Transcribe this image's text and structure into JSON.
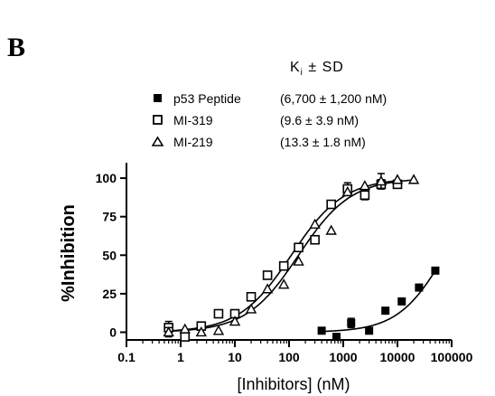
{
  "panel_label": "B",
  "legend": {
    "header_main": "K",
    "header_sub": "i",
    "header_suffix": " ± SD",
    "entries": [
      {
        "marker": "filled-square",
        "label": "p53 Peptide",
        "ki": "(6,700 ± 1,200 nM)"
      },
      {
        "marker": "open-square",
        "label": "MI-319",
        "ki": "(9.6  ± 3.9 nM)"
      },
      {
        "marker": "open-triangle",
        "label": "MI-219",
        "ki": "(13.3  ± 1.8 nM)"
      }
    ]
  },
  "chart_data": {
    "type": "scatter",
    "title": "",
    "xlabel": "[Inhibitors] (nM)",
    "ylabel": "%Inhibition",
    "x_scale": "log",
    "xlim": [
      0.1,
      100000
    ],
    "ylim": [
      -5,
      110
    ],
    "x_ticks": [
      0.1,
      1,
      10,
      100,
      1000,
      10000,
      100000
    ],
    "x_tick_labels": [
      "0.1",
      "1",
      "10",
      "100",
      "1000",
      "10000",
      "100000"
    ],
    "y_ticks": [
      0,
      25,
      50,
      75,
      100
    ],
    "y_tick_labels": [
      "0",
      "25",
      "50",
      "75",
      "100"
    ],
    "grid": false,
    "series": [
      {
        "name": "p53 Peptide",
        "marker": "filled-square",
        "points": [
          {
            "x": 400,
            "y": 1,
            "err": 0
          },
          {
            "x": 750,
            "y": -3,
            "err": 0
          },
          {
            "x": 1400,
            "y": 6,
            "err": 3
          },
          {
            "x": 3000,
            "y": 1,
            "err": 0
          },
          {
            "x": 6000,
            "y": 14,
            "err": 0
          },
          {
            "x": 12000,
            "y": 20,
            "err": 0
          },
          {
            "x": 25000,
            "y": 29,
            "err": 2
          },
          {
            "x": 50000,
            "y": 40,
            "err": 0
          }
        ],
        "fit": {
          "bottom": 0,
          "top": 100,
          "ec50": 75000,
          "hill": 1
        }
      },
      {
        "name": "MI-319",
        "marker": "open-square",
        "points": [
          {
            "x": 0.6,
            "y": 3,
            "err": 4
          },
          {
            "x": 1.2,
            "y": -3,
            "err": 0
          },
          {
            "x": 2.4,
            "y": 4,
            "err": 0
          },
          {
            "x": 5,
            "y": 12,
            "err": 0
          },
          {
            "x": 10,
            "y": 12,
            "err": 0
          },
          {
            "x": 20,
            "y": 23,
            "err": 0
          },
          {
            "x": 40,
            "y": 37,
            "err": 0
          },
          {
            "x": 80,
            "y": 43,
            "err": 0
          },
          {
            "x": 150,
            "y": 55,
            "err": 0
          },
          {
            "x": 300,
            "y": 60,
            "err": 0
          },
          {
            "x": 600,
            "y": 83,
            "err": 0
          },
          {
            "x": 1200,
            "y": 93,
            "err": 4
          },
          {
            "x": 2500,
            "y": 89,
            "err": 3
          },
          {
            "x": 5000,
            "y": 96,
            "err": 3
          },
          {
            "x": 10000,
            "y": 96,
            "err": 0
          }
        ],
        "fit": {
          "bottom": 0,
          "top": 100,
          "ec50": 110,
          "hill": 0.9
        }
      },
      {
        "name": "MI-219",
        "marker": "open-triangle",
        "points": [
          {
            "x": 0.6,
            "y": 0,
            "err": 3
          },
          {
            "x": 1.2,
            "y": 2,
            "err": 0
          },
          {
            "x": 2.4,
            "y": 0,
            "err": 0
          },
          {
            "x": 5,
            "y": 1,
            "err": 0
          },
          {
            "x": 10,
            "y": 7,
            "err": 0
          },
          {
            "x": 20,
            "y": 15,
            "err": 0
          },
          {
            "x": 40,
            "y": 28,
            "err": 0
          },
          {
            "x": 80,
            "y": 31,
            "err": 0
          },
          {
            "x": 150,
            "y": 46,
            "err": 0
          },
          {
            "x": 300,
            "y": 70,
            "err": 0
          },
          {
            "x": 600,
            "y": 66,
            "err": 0
          },
          {
            "x": 1200,
            "y": 91,
            "err": 0
          },
          {
            "x": 2500,
            "y": 95,
            "err": 0
          },
          {
            "x": 5000,
            "y": 98,
            "err": 5
          },
          {
            "x": 10000,
            "y": 99,
            "err": 0
          },
          {
            "x": 20000,
            "y": 99,
            "err": 0
          }
        ],
        "fit": {
          "bottom": 0,
          "top": 100,
          "ec50": 150,
          "hill": 0.9
        }
      }
    ]
  }
}
